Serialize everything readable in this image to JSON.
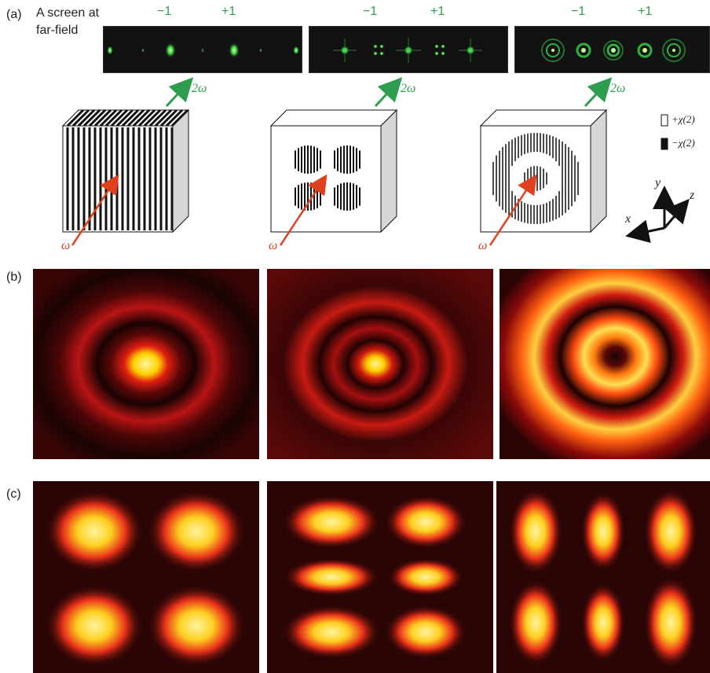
{
  "panel_a": {
    "label": "(a)",
    "screen_label_line1": "A screen at",
    "screen_label_line2": "far-field",
    "orders": [
      "−1",
      "+1"
    ],
    "output_label": "2ω",
    "input_label": "ω",
    "legend_pos": "+χ(2)",
    "legend_neg": "−χ(2)",
    "axes": {
      "x": "x",
      "y": "y",
      "z": "z"
    },
    "colors": {
      "green": "#2e9e4e",
      "red": "#e0401e"
    }
  },
  "panel_b": {
    "label": "(b)"
  },
  "panel_c": {
    "label": "(c)"
  }
}
